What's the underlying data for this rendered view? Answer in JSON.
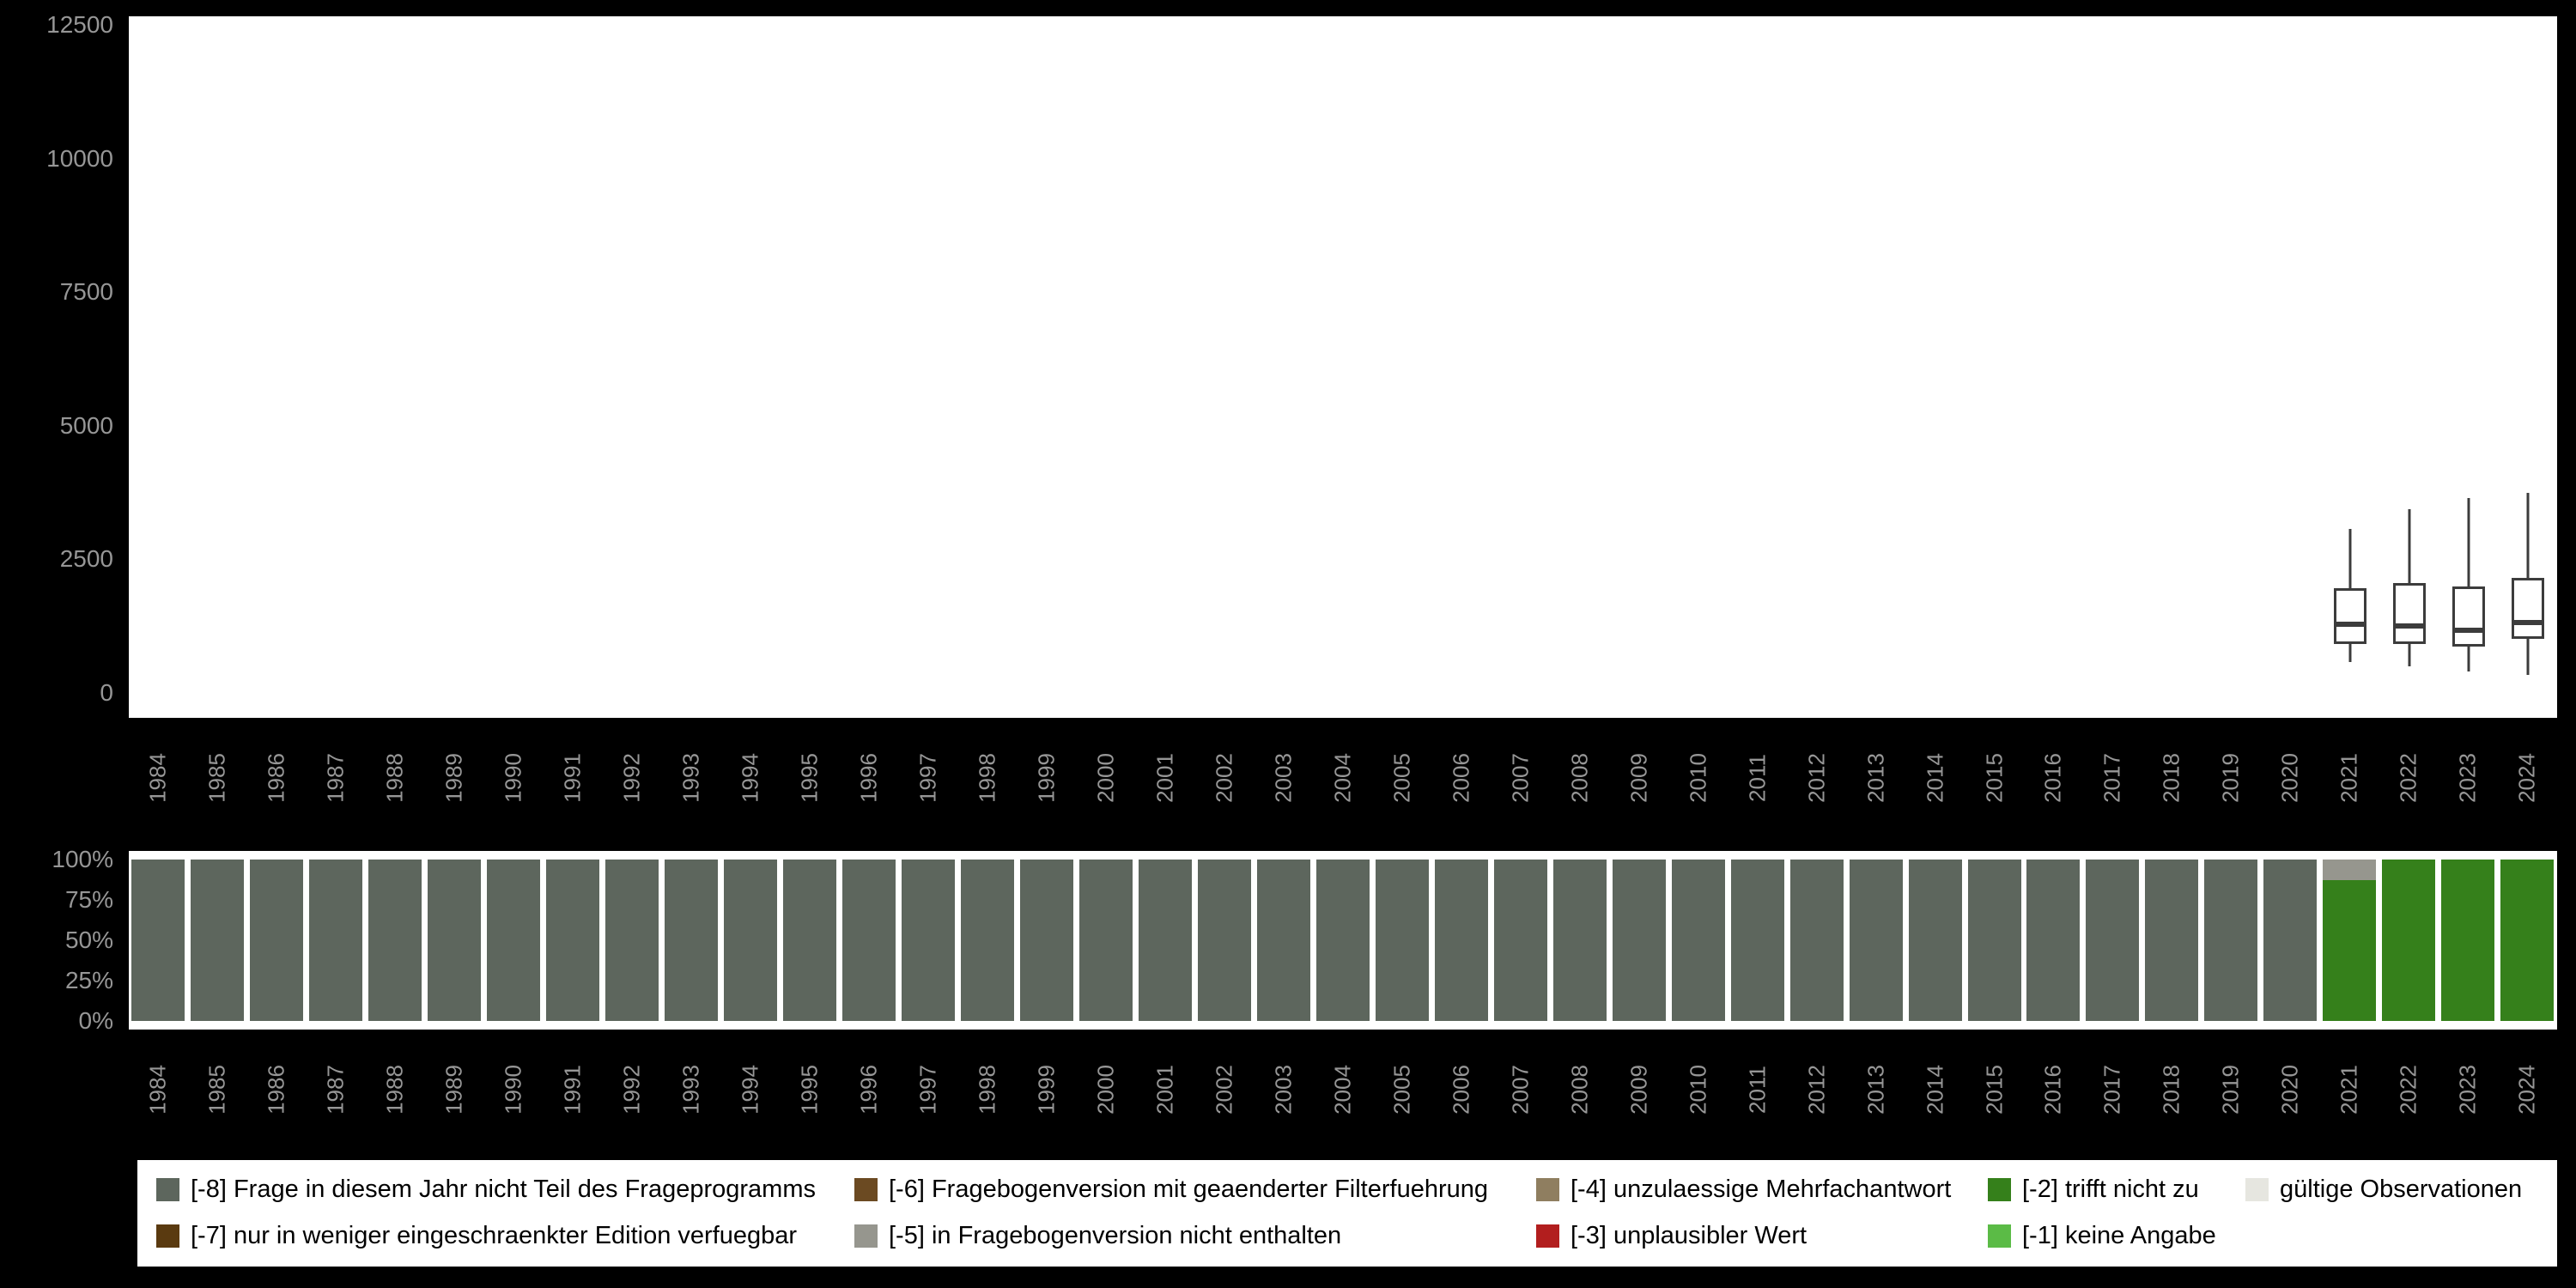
{
  "colors": {
    "-8": "#5d665d",
    "-7": "#5a3a10",
    "-6": "#6b4a22",
    "-5": "#96968e",
    "-4": "#8f7e60",
    "-3": "#b21e1e",
    "-2": "#35801b",
    "-1": "#5bbb46",
    "valid": "#e6e6e0",
    "background": "#000000",
    "panel": "#ffffff",
    "axis_text": "#969696",
    "boxplot_stroke": "#3c3c3c"
  },
  "chart_data": [
    {
      "type": "boxplot",
      "title": "",
      "xlabel": "",
      "ylabel": "",
      "grid": false,
      "x": [
        1984,
        1985,
        1986,
        1987,
        1988,
        1989,
        1990,
        1991,
        1992,
        1993,
        1994,
        1995,
        1996,
        1997,
        1998,
        1999,
        2000,
        2001,
        2002,
        2003,
        2004,
        2005,
        2006,
        2007,
        2008,
        2009,
        2010,
        2011,
        2012,
        2013,
        2014,
        2015,
        2016,
        2017,
        2018,
        2019,
        2020,
        2021,
        2022,
        2023,
        2024
      ],
      "ylim": [
        0,
        12500
      ],
      "yticks": [
        0,
        2500,
        5000,
        7500,
        10000,
        12500
      ],
      "series": [
        {
          "year": 2021,
          "min": 580,
          "q1": 920,
          "median": 1290,
          "q3": 1960,
          "max": 3070
        },
        {
          "year": 2022,
          "min": 490,
          "q1": 920,
          "median": 1260,
          "q3": 2060,
          "max": 3440
        },
        {
          "year": 2023,
          "min": 400,
          "q1": 860,
          "median": 1170,
          "q3": 2000,
          "max": 3650
        },
        {
          "year": 2024,
          "min": 340,
          "q1": 1010,
          "median": 1320,
          "q3": 2150,
          "max": 3750
        }
      ]
    },
    {
      "type": "stacked-bar-percent",
      "title": "",
      "categories": [
        1984,
        1985,
        1986,
        1987,
        1988,
        1989,
        1990,
        1991,
        1992,
        1993,
        1994,
        1995,
        1996,
        1997,
        1998,
        1999,
        2000,
        2001,
        2002,
        2003,
        2004,
        2005,
        2006,
        2007,
        2008,
        2009,
        2010,
        2011,
        2012,
        2013,
        2014,
        2015,
        2016,
        2017,
        2018,
        2019,
        2020,
        2021,
        2022,
        2023,
        2024
      ],
      "yticks": [
        "100%",
        "75%",
        "50%",
        "25%",
        "0%"
      ],
      "values": {
        "1984": [
          [
            "-8",
            100
          ]
        ],
        "1985": [
          [
            "-8",
            100
          ]
        ],
        "1986": [
          [
            "-8",
            100
          ]
        ],
        "1987": [
          [
            "-8",
            100
          ]
        ],
        "1988": [
          [
            "-8",
            100
          ]
        ],
        "1989": [
          [
            "-8",
            100
          ]
        ],
        "1990": [
          [
            "-8",
            100
          ]
        ],
        "1991": [
          [
            "-8",
            100
          ]
        ],
        "1992": [
          [
            "-8",
            100
          ]
        ],
        "1993": [
          [
            "-8",
            100
          ]
        ],
        "1994": [
          [
            "-8",
            100
          ]
        ],
        "1995": [
          [
            "-8",
            100
          ]
        ],
        "1996": [
          [
            "-8",
            100
          ]
        ],
        "1997": [
          [
            "-8",
            100
          ]
        ],
        "1998": [
          [
            "-8",
            100
          ]
        ],
        "1999": [
          [
            "-8",
            100
          ]
        ],
        "2000": [
          [
            "-8",
            100
          ]
        ],
        "2001": [
          [
            "-8",
            100
          ]
        ],
        "2002": [
          [
            "-8",
            100
          ]
        ],
        "2003": [
          [
            "-8",
            100
          ]
        ],
        "2004": [
          [
            "-8",
            100
          ]
        ],
        "2005": [
          [
            "-8",
            100
          ]
        ],
        "2006": [
          [
            "-8",
            100
          ]
        ],
        "2007": [
          [
            "-8",
            100
          ]
        ],
        "2008": [
          [
            "-8",
            100
          ]
        ],
        "2009": [
          [
            "-8",
            100
          ]
        ],
        "2010": [
          [
            "-8",
            100
          ]
        ],
        "2011": [
          [
            "-8",
            100
          ]
        ],
        "2012": [
          [
            "-8",
            100
          ]
        ],
        "2013": [
          [
            "-8",
            100
          ]
        ],
        "2014": [
          [
            "-8",
            100
          ]
        ],
        "2015": [
          [
            "-8",
            100
          ]
        ],
        "2016": [
          [
            "-8",
            100
          ]
        ],
        "2017": [
          [
            "-8",
            100
          ]
        ],
        "2018": [
          [
            "-8",
            100
          ]
        ],
        "2019": [
          [
            "-8",
            100
          ]
        ],
        "2020": [
          [
            "-8",
            100
          ]
        ],
        "2021": [
          [
            "-5",
            13
          ],
          [
            "-2",
            87
          ]
        ],
        "2022": [
          [
            "-2",
            100
          ]
        ],
        "2023": [
          [
            "-2",
            100
          ]
        ],
        "2024": [
          [
            "-2",
            100
          ]
        ]
      }
    }
  ],
  "legend": {
    "items": [
      {
        "key": "-8",
        "label": "[-8] Frage in diesem Jahr nicht Teil des Frageprogramms",
        "row": 0,
        "col": 0
      },
      {
        "key": "-6",
        "label": "[-6] Fragebogenversion mit geaenderter Filterfuehrung",
        "row": 0,
        "col": 1
      },
      {
        "key": "-4",
        "label": "[-4] unzulaessige Mehrfachantwort",
        "row": 0,
        "col": 2
      },
      {
        "key": "-2",
        "label": "[-2] trifft nicht zu",
        "row": 0,
        "col": 3
      },
      {
        "key": "valid",
        "label": "gültige Observationen",
        "row": 0,
        "col": 4
      },
      {
        "key": "-7",
        "label": "[-7] nur in weniger eingeschraenkter Edition verfuegbar",
        "row": 1,
        "col": 0
      },
      {
        "key": "-5",
        "label": "[-5] in Fragebogenversion nicht enthalten",
        "row": 1,
        "col": 1
      },
      {
        "key": "-3",
        "label": "[-3] unplausibler Wert",
        "row": 1,
        "col": 2
      },
      {
        "key": "-1",
        "label": "[-1] keine Angabe",
        "row": 1,
        "col": 3
      }
    ]
  }
}
